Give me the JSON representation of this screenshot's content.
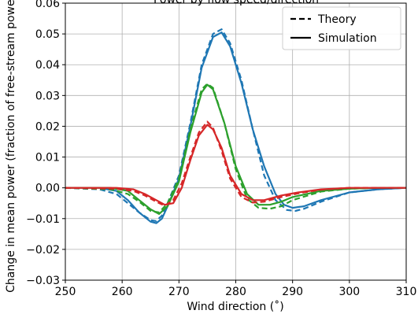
{
  "chart_data": {
    "type": "line",
    "title": "Power by flow speed/direction",
    "xlabel": "Wind direction (˚)",
    "ylabel": "Change in mean power (fraction of free-stream power)",
    "xlim": [
      250,
      310
    ],
    "ylim": [
      -0.03,
      0.06
    ],
    "xticks": [
      250,
      260,
      270,
      280,
      290,
      300,
      310
    ],
    "xtick_labels": [
      "250",
      "260",
      "270",
      "280",
      "290",
      "300",
      "310"
    ],
    "yticks": [
      -0.03,
      -0.02,
      -0.01,
      0.0,
      0.01,
      0.02,
      0.03,
      0.04,
      0.05,
      0.06
    ],
    "ytick_labels": [
      "−0.03",
      "−0.02",
      "−0.01",
      "0.00",
      "0.01",
      "0.02",
      "0.03",
      "0.04",
      "0.05",
      "0.06"
    ],
    "grid": true,
    "legend": {
      "placement": "upper-right",
      "entries": [
        {
          "label": "Theory",
          "style": "dashed"
        },
        {
          "label": "Simulation",
          "style": "solid"
        }
      ]
    },
    "series": [
      {
        "color": "#1f77b4",
        "style": "solid",
        "x": [
          250,
          256,
          259,
          261,
          263,
          265,
          266,
          267,
          268,
          270,
          272,
          274,
          276,
          277.5,
          279,
          281,
          283,
          285,
          287,
          288.5,
          290,
          292,
          295,
          300,
          305,
          310
        ],
        "y": [
          0,
          0,
          -0.001,
          -0.004,
          -0.008,
          -0.011,
          -0.0115,
          -0.01,
          -0.006,
          0.003,
          0.02,
          0.039,
          0.049,
          0.0505,
          0.046,
          0.034,
          0.019,
          0.007,
          -0.002,
          -0.0055,
          -0.0065,
          -0.006,
          -0.004,
          -0.0015,
          -0.0005,
          0
        ]
      },
      {
        "color": "#1f77b4",
        "style": "dashed",
        "x": [
          250,
          256,
          259,
          261,
          263,
          265,
          266,
          267,
          268,
          270,
          272,
          274,
          276,
          277.5,
          279,
          281,
          283,
          285,
          287,
          289,
          290.5,
          292,
          295,
          300,
          305,
          310
        ],
        "y": [
          0,
          -0.0005,
          -0.002,
          -0.005,
          -0.008,
          -0.0105,
          -0.0108,
          -0.009,
          -0.005,
          0.004,
          0.021,
          0.04,
          0.05,
          0.0515,
          0.047,
          0.035,
          0.019,
          0.004,
          -0.004,
          -0.0072,
          -0.0075,
          -0.0068,
          -0.0045,
          -0.0015,
          -0.0005,
          0
        ]
      },
      {
        "color": "#2ca02c",
        "style": "solid",
        "x": [
          250,
          258,
          261,
          263,
          265,
          266.5,
          268,
          270,
          272,
          274,
          275,
          276,
          278,
          280,
          282,
          284,
          286,
          288,
          290,
          295,
          300,
          305,
          310
        ],
        "y": [
          0,
          0,
          -0.001,
          -0.004,
          -0.007,
          -0.0085,
          -0.006,
          0.002,
          0.018,
          0.031,
          0.0335,
          0.032,
          0.021,
          0.007,
          -0.002,
          -0.0055,
          -0.0055,
          -0.0045,
          -0.003,
          -0.001,
          -0.0003,
          0,
          0
        ]
      },
      {
        "color": "#2ca02c",
        "style": "dashed",
        "x": [
          250,
          258,
          261,
          263,
          265,
          266.5,
          268,
          270,
          272,
          274,
          275,
          276,
          278,
          280,
          282,
          284,
          286,
          288,
          290,
          295,
          300,
          305,
          310
        ],
        "y": [
          0,
          -0.0005,
          -0.002,
          -0.0045,
          -0.0075,
          -0.008,
          -0.005,
          0.003,
          0.019,
          0.032,
          0.0338,
          0.0325,
          0.021,
          0.006,
          -0.0035,
          -0.0065,
          -0.0068,
          -0.006,
          -0.004,
          -0.0012,
          -0.0003,
          0,
          0
        ]
      },
      {
        "color": "#d62728",
        "style": "solid",
        "x": [
          250,
          259,
          262,
          264,
          266,
          267.5,
          269,
          270.5,
          272,
          273.5,
          275,
          276,
          277.5,
          279,
          281,
          283,
          285,
          288,
          291,
          295,
          300,
          305,
          310
        ],
        "y": [
          0,
          0,
          -0.0005,
          -0.002,
          -0.004,
          -0.0055,
          -0.005,
          0.0,
          0.009,
          0.017,
          0.0205,
          0.019,
          0.013,
          0.004,
          -0.002,
          -0.004,
          -0.004,
          -0.0025,
          -0.0015,
          -0.0005,
          0,
          0,
          0
        ]
      },
      {
        "color": "#d62728",
        "style": "dashed",
        "x": [
          250,
          259,
          262,
          264,
          266,
          267.5,
          269,
          270.5,
          272,
          273.5,
          275,
          276,
          277.5,
          279,
          281,
          283,
          285,
          288,
          291,
          295,
          300,
          305,
          310
        ],
        "y": [
          0,
          -0.0003,
          -0.001,
          -0.0025,
          -0.0045,
          -0.0058,
          -0.004,
          0.0015,
          0.01,
          0.018,
          0.0215,
          0.0195,
          0.012,
          0.003,
          -0.003,
          -0.0048,
          -0.0045,
          -0.003,
          -0.0018,
          -0.0006,
          0,
          0,
          0
        ]
      }
    ]
  }
}
